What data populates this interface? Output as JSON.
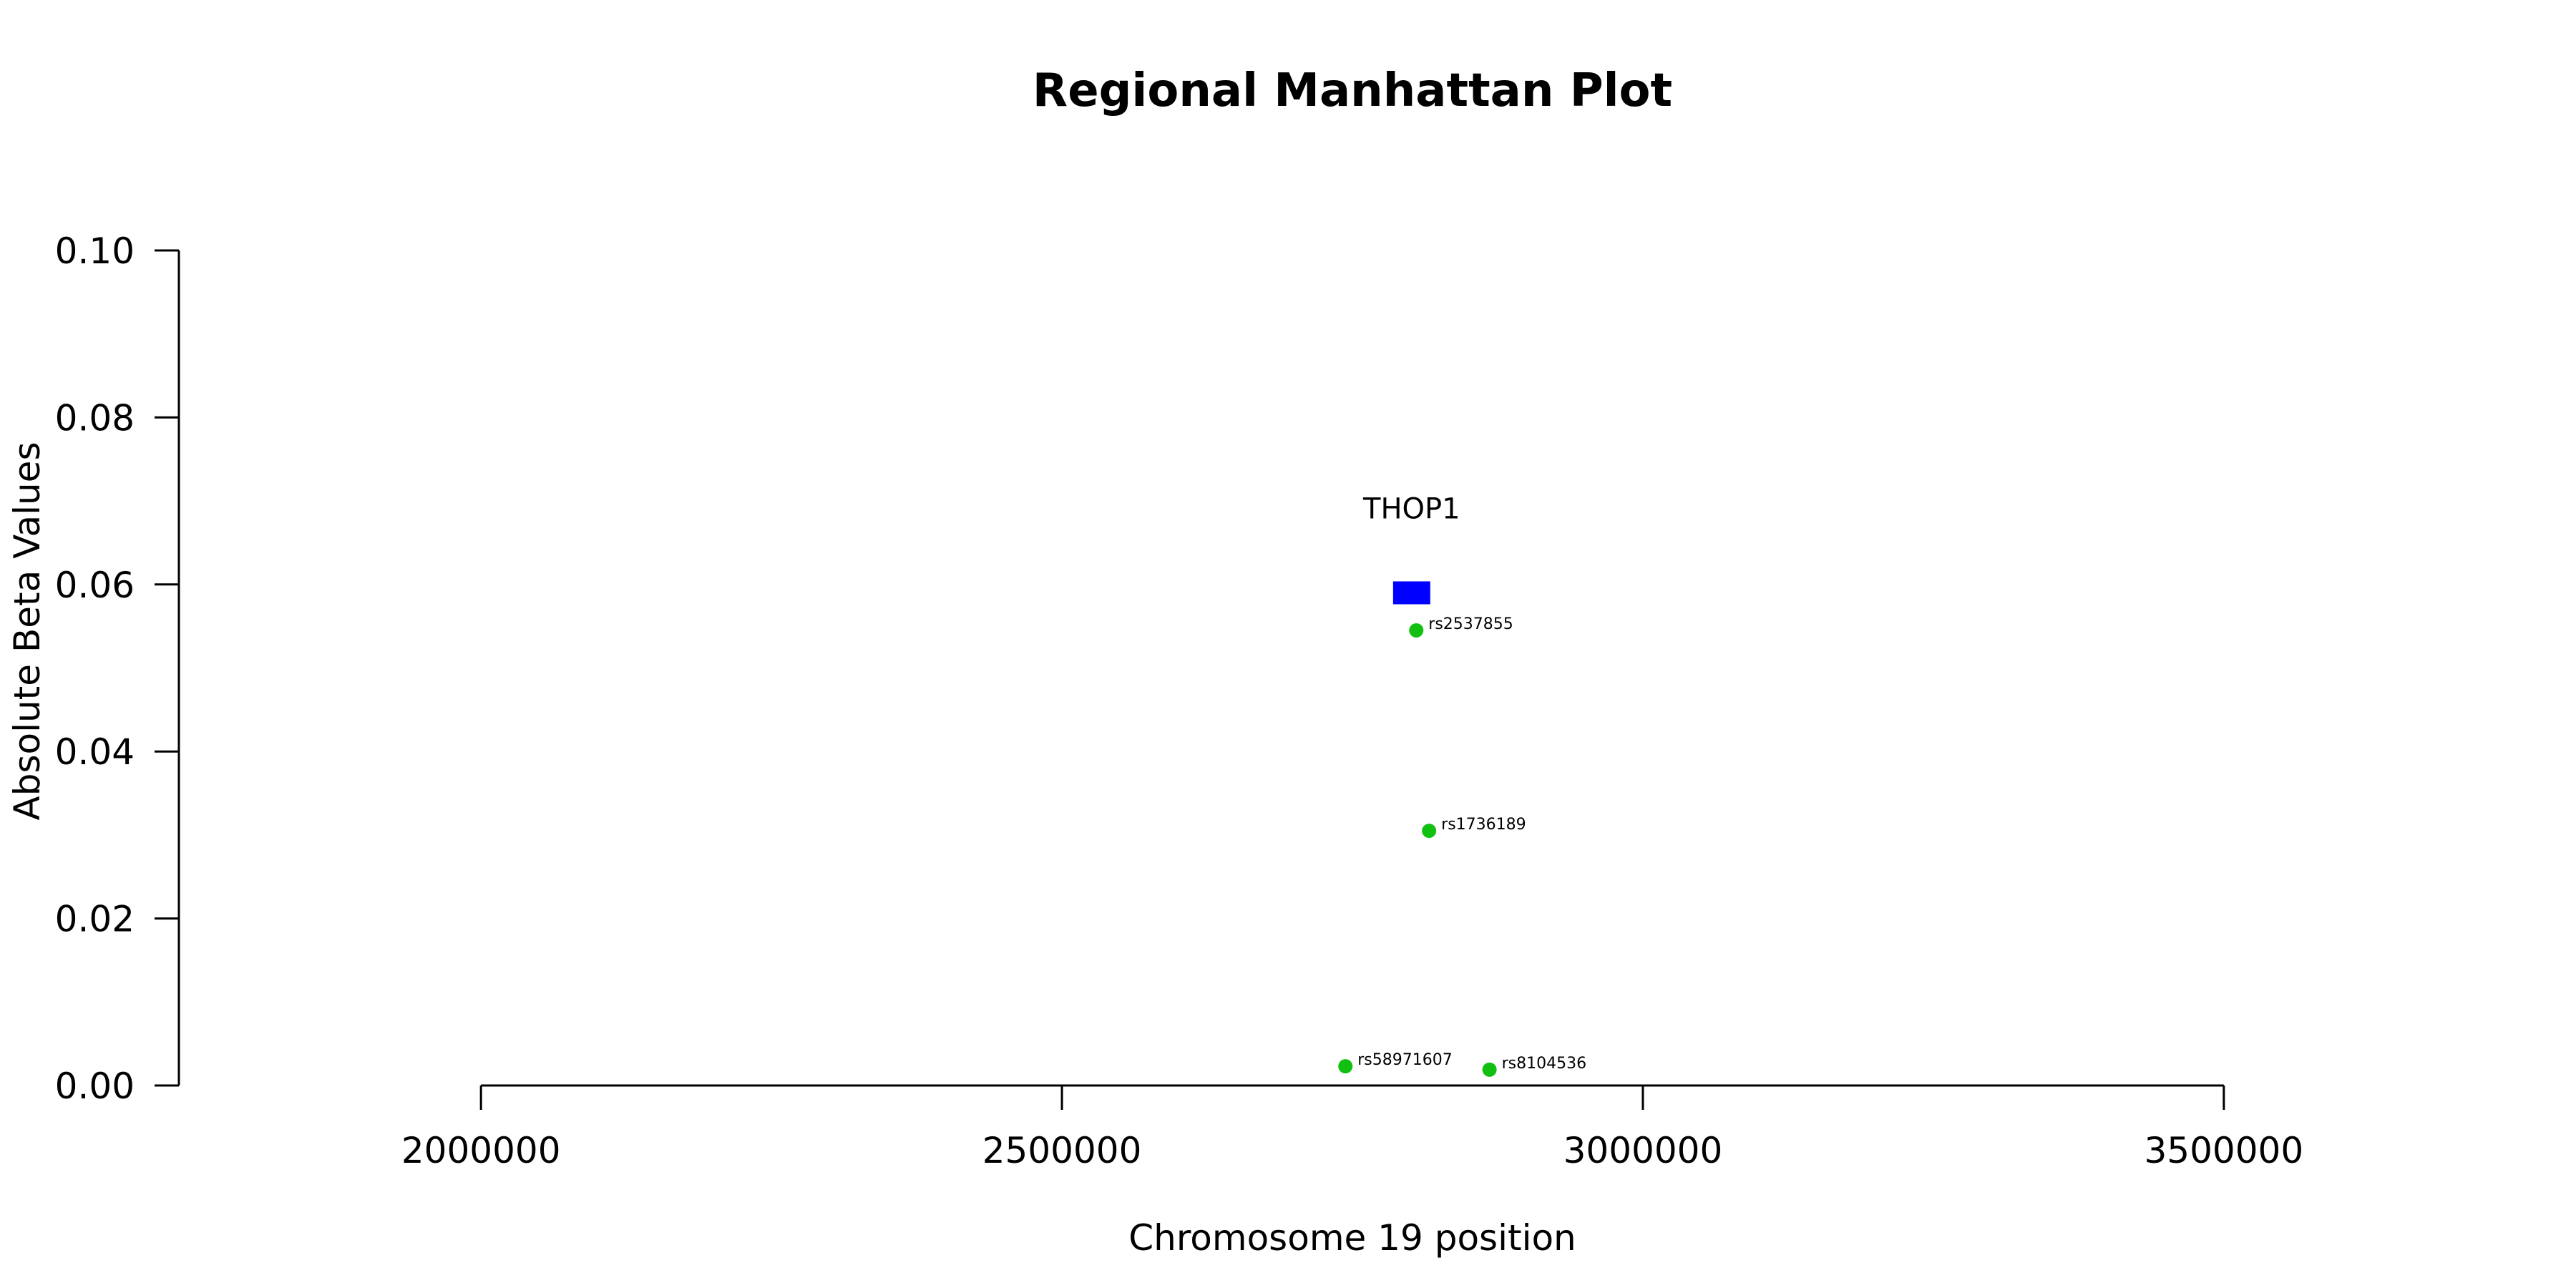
{
  "chart_data": {
    "type": "scatter",
    "title": "Regional Manhattan Plot",
    "xlabel": "Chromosome 19 position",
    "ylabel": "Absolute Beta Values",
    "xlim": [
      1740000,
      3760000
    ],
    "ylim": [
      0.0,
      0.1
    ],
    "x_ticks": [
      2000000,
      2500000,
      3000000,
      3500000
    ],
    "x_tick_labels": [
      "2000000",
      "2500000",
      "3000000",
      "3500000"
    ],
    "y_ticks": [
      0.0,
      0.02,
      0.04,
      0.06,
      0.08,
      0.1
    ],
    "y_tick_labels": [
      "0.00",
      "0.02",
      "0.04",
      "0.06",
      "0.08",
      "0.10"
    ],
    "grid": false,
    "legend": "none",
    "point_color": "#11c011",
    "gene_color": "#0000ff",
    "genes": [
      {
        "name": "THOP1",
        "start": 2785000,
        "end": 2817000,
        "y": 0.059
      }
    ],
    "points": [
      {
        "id": "rs2537855",
        "x": 2805000,
        "y": 0.0545
      },
      {
        "id": "rs1736189",
        "x": 2816000,
        "y": 0.0305
      },
      {
        "id": "rs58971607",
        "x": 2744000,
        "y": 0.0023
      },
      {
        "id": "rs8104536",
        "x": 2868000,
        "y": 0.0019
      }
    ]
  }
}
